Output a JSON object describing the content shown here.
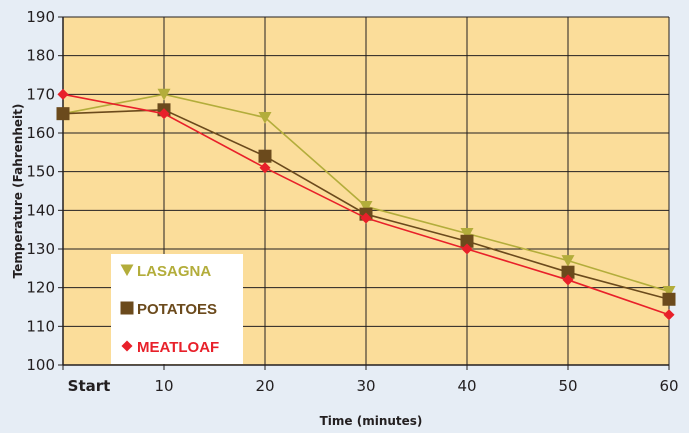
{
  "chart_data": {
    "type": "line",
    "title": "",
    "xlabel": "Time (minutes)",
    "ylabel": "Temperature (Fahrenheit)",
    "x": [
      0,
      10,
      20,
      30,
      40,
      50,
      60
    ],
    "x_tick_labels": [
      "Start",
      "10",
      "20",
      "30",
      "40",
      "50",
      "60"
    ],
    "xlim": [
      0,
      60
    ],
    "ylim": [
      100,
      190
    ],
    "y_ticks": [
      100,
      110,
      120,
      130,
      140,
      150,
      160,
      170,
      180,
      190
    ],
    "grid": true,
    "legend_position": "bottom-left",
    "series": [
      {
        "name": "LASAGNA",
        "marker": "triangle-down",
        "color": "#b3ad3b",
        "values": [
          165,
          170,
          164,
          141,
          134,
          127,
          119
        ]
      },
      {
        "name": "POTATOES",
        "marker": "square",
        "color": "#6b4a1c",
        "values": [
          165,
          166,
          154,
          139,
          132,
          124,
          117
        ]
      },
      {
        "name": "MEATLOAF",
        "marker": "diamond",
        "color": "#e8202a",
        "values": [
          170,
          165,
          151,
          138,
          130,
          122,
          113
        ]
      }
    ],
    "colors": {
      "plot_background": "#fbdd9a",
      "page_background": "#e6edf5",
      "legend_background": "#ffffff",
      "grid": "#231f20"
    }
  }
}
